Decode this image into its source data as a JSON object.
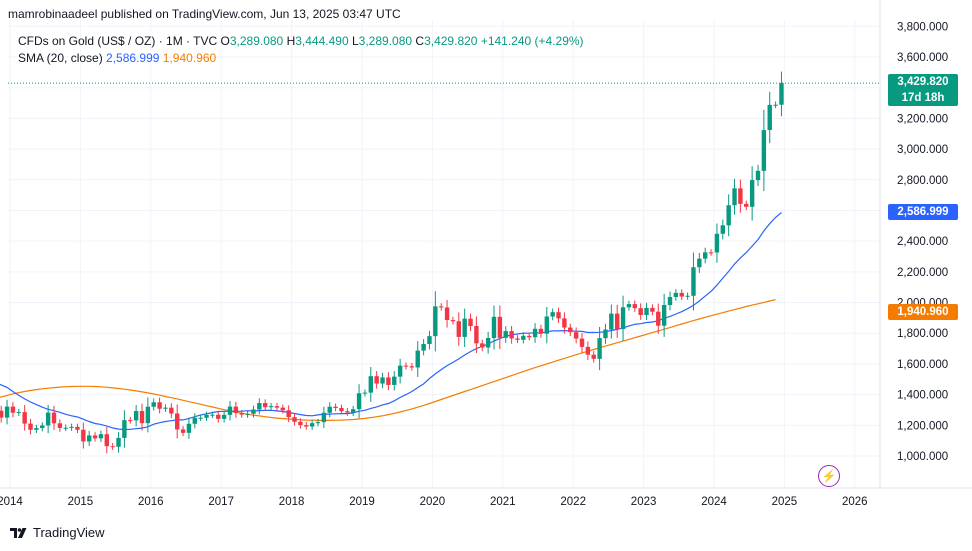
{
  "header": {
    "publisher_line": "mamrobinaadeel published on TradingView.com, Jun 13, 2025 03:47 UTC"
  },
  "legend": {
    "symbol": "CFDs on Gold (US$ / OZ) · 1M · TVC",
    "o_label": "O",
    "o_value": "3,289.080",
    "h_label": "H",
    "h_value": "3,444.490",
    "l_label": "L",
    "l_value": "3,289.080",
    "c_label": "C",
    "c_value": "3,429.820",
    "change": "+141.240 (+4.29%)",
    "sma_label": "SMA (20, close)",
    "sma_value_1": "2,586.999",
    "sma_value_2": "1,940.960"
  },
  "price_tags": {
    "last_price": "3,429.820",
    "countdown": "17d 18h",
    "sma_1": "2,586.999",
    "sma_2": "1,940.960"
  },
  "footer": {
    "brand": "TradingView"
  },
  "colors": {
    "up": "#089981",
    "down": "#f23645",
    "sma_1": "#2962ff",
    "sma_2": "#f57c00",
    "bolt": "#9c27b0"
  },
  "icons": {
    "alert": "bolt-icon",
    "logo": "tradingview-logo-icon"
  },
  "chart_data": {
    "type": "candlestick",
    "interval": "1M",
    "y_ticks": [
      1000,
      1200,
      1400,
      1600,
      1800,
      2000,
      2200,
      2400,
      2600,
      2800,
      3000,
      3200,
      3400,
      3600,
      3800
    ],
    "y_tick_labels": [
      "1,000.000",
      "1,200.000",
      "1,400.000",
      "1,600.000",
      "1,800.000",
      "2,000.000",
      "2,200.000",
      "2,400.000",
      "2,600.000",
      "2,800.000",
      "3,000.000",
      "3,200.000",
      "3,400.000",
      "3,600.000",
      "3,800.000"
    ],
    "ylim": [
      800,
      3800
    ],
    "x_labels": [
      "2014",
      "2015",
      "2016",
      "2017",
      "2018",
      "2019",
      "2020",
      "2021",
      "2022",
      "2023",
      "2024",
      "2025",
      "2026"
    ],
    "xlim": [
      2014.0,
      2026.7
    ],
    "last_close": 3429.82,
    "closes": [
      1240,
      1326,
      1284,
      1295,
      1250,
      1322,
      1282,
      1286,
      1211,
      1171,
      1182,
      1199,
      1283,
      1213,
      1183,
      1184,
      1190,
      1171,
      1095,
      1134,
      1115,
      1142,
      1064,
      1060,
      1118,
      1234,
      1232,
      1293,
      1214,
      1321,
      1350,
      1308,
      1315,
      1277,
      1173,
      1151,
      1210,
      1249,
      1249,
      1268,
      1269,
      1242,
      1268,
      1322,
      1280,
      1270,
      1275,
      1303,
      1345,
      1318,
      1325,
      1315,
      1298,
      1253,
      1223,
      1201,
      1192,
      1214,
      1221,
      1282,
      1321,
      1313,
      1292,
      1283,
      1305,
      1409,
      1413,
      1520,
      1472,
      1512,
      1463,
      1517,
      1589,
      1585,
      1577,
      1687,
      1730,
      1781,
      1975,
      1968,
      1886,
      1878,
      1776,
      1895,
      1847,
      1734,
      1707,
      1769,
      1907,
      1770,
      1814,
      1766,
      1757,
      1783,
      1774,
      1829,
      1797,
      1909,
      1937,
      1897,
      1837,
      1807,
      1765,
      1711,
      1660,
      1633,
      1768,
      1824,
      1928,
      1827,
      1969,
      1990,
      1963,
      1919,
      1965,
      1940,
      1849,
      1984,
      2036,
      2063,
      2039,
      2044,
      2230,
      2286,
      2327,
      2326,
      2448,
      2503,
      2634,
      2744,
      2643,
      2624,
      2798,
      2858,
      3124,
      3288,
      3289,
      3429.82
    ],
    "sma_20": [
      1540,
      1520,
      1497,
      1480,
      1463,
      1447,
      1420,
      1395,
      1372,
      1352,
      1335,
      1318,
      1304,
      1295,
      1285,
      1272,
      1262,
      1254,
      1240,
      1225,
      1212,
      1206,
      1195,
      1183,
      1175,
      1173,
      1174,
      1178,
      1182,
      1190,
      1207,
      1217,
      1225,
      1230,
      1235,
      1235,
      1245,
      1256,
      1268,
      1275,
      1283,
      1290,
      1291,
      1292,
      1291,
      1292,
      1295,
      1293,
      1296,
      1297,
      1298,
      1294,
      1290,
      1284,
      1277,
      1270,
      1264,
      1262,
      1268,
      1273,
      1273,
      1275,
      1276,
      1276,
      1281,
      1292,
      1298,
      1310,
      1320,
      1333,
      1342,
      1360,
      1381,
      1400,
      1420,
      1446,
      1470,
      1505,
      1535,
      1563,
      1589,
      1610,
      1633,
      1658,
      1680,
      1700,
      1715,
      1730,
      1750,
      1765,
      1780,
      1790,
      1795,
      1800,
      1800,
      1803,
      1800,
      1810,
      1815,
      1815,
      1817,
      1815,
      1813,
      1812,
      1805,
      1805,
      1806,
      1810,
      1818,
      1825,
      1835,
      1848,
      1858,
      1862,
      1870,
      1873,
      1881,
      1897,
      1910,
      1925,
      1940,
      1960,
      1982,
      2010,
      2042,
      2073,
      2113,
      2159,
      2203,
      2251,
      2291,
      2326,
      2368,
      2410,
      2467,
      2514,
      2555,
      2586.999
    ],
    "sma_120": [
      1330,
      1345,
      1360,
      1373,
      1385,
      1395,
      1405,
      1413,
      1420,
      1427,
      1433,
      1438,
      1442,
      1446,
      1449,
      1451,
      1453,
      1454,
      1454,
      1454,
      1453,
      1451,
      1448,
      1444,
      1440,
      1435,
      1430,
      1424,
      1418,
      1411,
      1404,
      1396,
      1388,
      1380,
      1372,
      1363,
      1354,
      1346,
      1337,
      1328,
      1319,
      1311,
      1302,
      1294,
      1286,
      1279,
      1272,
      1266,
      1261,
      1256,
      1251,
      1247,
      1244,
      1241,
      1238,
      1236,
      1234,
      1233,
      1232,
      1232,
      1232,
      1233,
      1234,
      1236,
      1238,
      1241,
      1245,
      1250,
      1256,
      1262,
      1270,
      1278,
      1287,
      1297,
      1307,
      1318,
      1330,
      1342,
      1355,
      1368,
      1381,
      1394,
      1407,
      1420,
      1433,
      1446,
      1459,
      1472,
      1485,
      1498,
      1511,
      1524,
      1537,
      1550,
      1563,
      1576,
      1588,
      1600,
      1612,
      1624,
      1636,
      1648,
      1660,
      1672,
      1683,
      1694,
      1705,
      1716,
      1727,
      1738,
      1749,
      1760,
      1771,
      1782,
      1793,
      1804,
      1815,
      1826,
      1837,
      1849,
      1860,
      1871,
      1882,
      1893,
      1904,
      1914,
      1924,
      1934,
      1944,
      1954,
      1964,
      1974,
      1983,
      1992,
      2001,
      2010,
      2019,
      1940.96
    ]
  }
}
